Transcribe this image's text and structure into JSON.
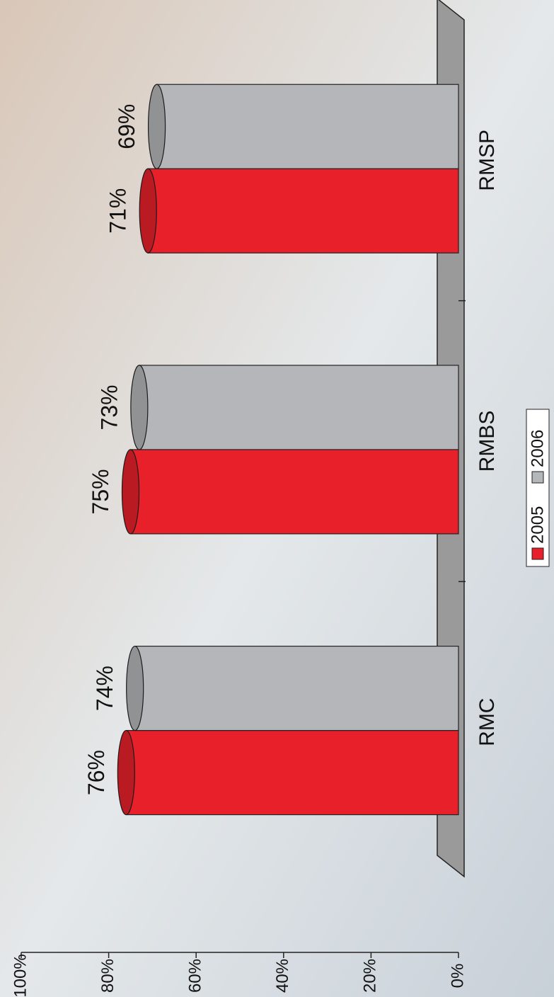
{
  "chart_data": {
    "type": "bar",
    "categories": [
      "RMC",
      "RMBS",
      "RMSP"
    ],
    "series": [
      {
        "name": "2005",
        "color": "#e8202a",
        "values": [
          76,
          75,
          71
        ],
        "value_labels": [
          "76%",
          "75%",
          "71%"
        ]
      },
      {
        "name": "2006",
        "color": "#b4b6b9",
        "values": [
          74,
          73,
          69
        ],
        "value_labels": [
          "74%",
          "73%",
          "69%"
        ]
      }
    ],
    "ylim": [
      0,
      100
    ],
    "yticks": [
      {
        "value": 0,
        "label": "0%"
      },
      {
        "value": 20,
        "label": "20%"
      },
      {
        "value": 40,
        "label": "40%"
      },
      {
        "value": 60,
        "label": "60%"
      },
      {
        "value": 80,
        "label": "80%"
      },
      {
        "value": 100,
        "label": "100%"
      }
    ],
    "legend": "bottom"
  }
}
